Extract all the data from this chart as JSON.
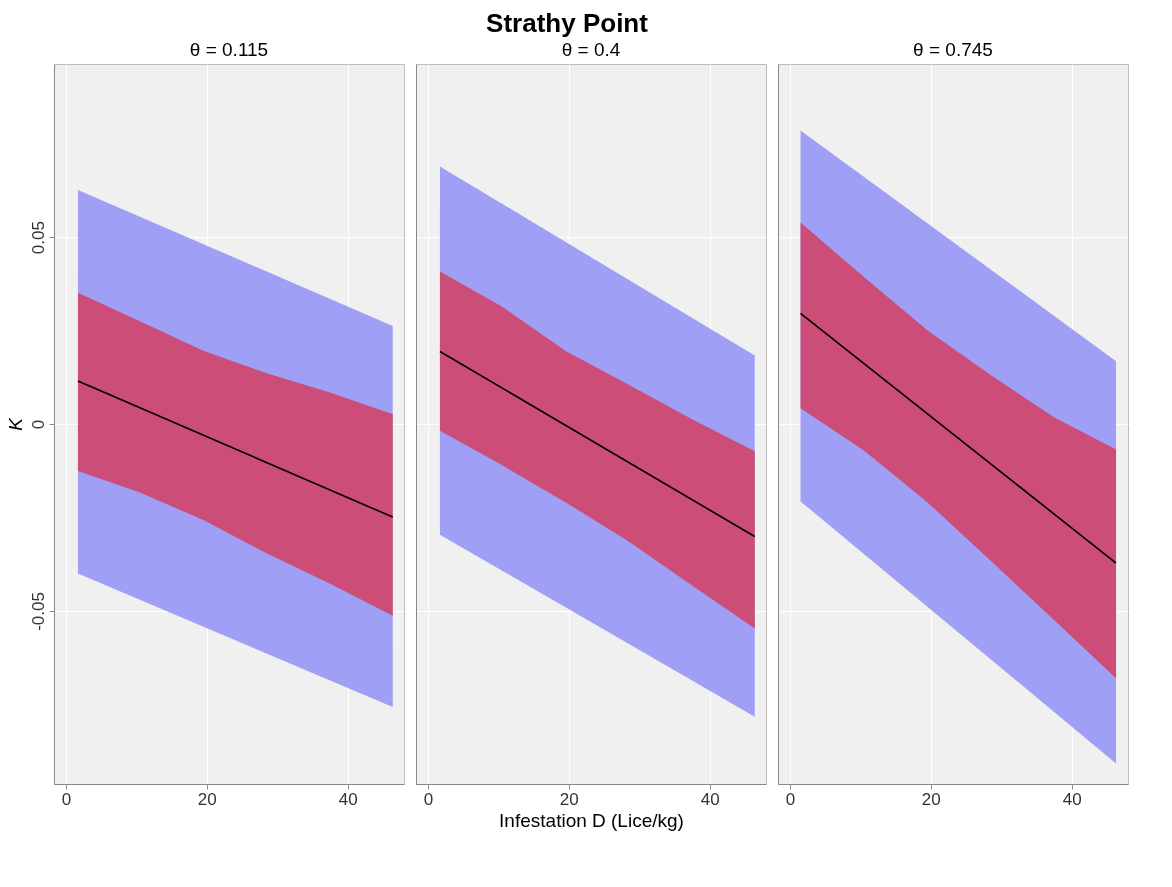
{
  "chart_data": [
    {
      "type": "line",
      "subtitle": "θ = 0.115",
      "ylabel": "K",
      "xlim": [
        -1.7,
        48
      ],
      "xticks": [
        0,
        20,
        40
      ],
      "ylim": [
        -0.0963,
        0.0963
      ],
      "yticks": [
        -0.05,
        0,
        0.05
      ],
      "grid": true,
      "legend": false,
      "series": [
        {
          "type": "area",
          "color": "#9f9ff5",
          "x": [
            1.7,
            46.4
          ],
          "values": [
            null,
            null
          ],
          "lower": [
            -0.04,
            -0.0757
          ],
          "upper": [
            0.0626,
            0.0262
          ]
        },
        {
          "type": "area",
          "color": "#cc4d77",
          "x": [
            1.7,
            10.5,
            19.5,
            28.5,
            37.5,
            46.4
          ],
          "values": [
            null,
            null,
            null,
            null,
            null,
            null
          ],
          "lower": [
            -0.0126,
            -0.0183,
            -0.0257,
            -0.0346,
            -0.0427,
            -0.0513
          ],
          "upper": [
            0.0351,
            0.0275,
            0.0196,
            0.0136,
            0.0084,
            0.0026
          ]
        },
        {
          "color": "#000000",
          "x": [
            1.7,
            46.4
          ],
          "values": [
            0.0115,
            -0.0249
          ]
        }
      ]
    },
    {
      "type": "line",
      "title": "Strathy Point",
      "subtitle": "θ = 0.4",
      "xlabel": "Infestation D (Lice/kg)",
      "xlim": [
        -1.7,
        48
      ],
      "xticks": [
        0,
        20,
        40
      ],
      "ylim": [
        -0.0963,
        0.0963
      ],
      "yticks": [
        -0.05,
        0,
        0.05
      ],
      "grid": true,
      "legend": false,
      "tick_labels": "x",
      "series": [
        {
          "type": "area",
          "color": "#9f9ff5",
          "x": [
            1.7,
            46.4
          ],
          "values": [
            null,
            null
          ],
          "lower": [
            -0.0296,
            -0.0783
          ],
          "upper": [
            0.0689,
            0.0183
          ]
        },
        {
          "type": "area",
          "color": "#cc4d77",
          "x": [
            1.7,
            10.5,
            19.5,
            28.5,
            37.5,
            46.4
          ],
          "values": [
            null,
            null,
            null,
            null,
            null,
            null
          ],
          "lower": [
            -0.0018,
            -0.011,
            -0.0209,
            -0.0314,
            -0.0432,
            -0.0547
          ],
          "upper": [
            0.0408,
            0.0314,
            0.0196,
            0.0105,
            0.0013,
            -0.0073
          ]
        },
        {
          "color": "#000000",
          "x": [
            1.7,
            46.4
          ],
          "values": [
            0.0194,
            -0.0301
          ]
        }
      ]
    },
    {
      "type": "line",
      "subtitle": "θ = 0.745",
      "xlim": [
        -1.7,
        48
      ],
      "xticks": [
        0,
        20,
        40
      ],
      "ylim": [
        -0.0963,
        0.0963
      ],
      "yticks": [
        -0.05,
        0,
        0.05
      ],
      "grid": true,
      "legend": false,
      "tick_labels": "x",
      "series": [
        {
          "type": "area",
          "color": "#9f9ff5",
          "x": [
            1.5,
            46.3
          ],
          "values": [
            null,
            null
          ],
          "lower": [
            -0.0207,
            -0.0908
          ],
          "upper": [
            0.0785,
            0.0168
          ]
        },
        {
          "type": "area",
          "color": "#cc4d77",
          "x": [
            1.5,
            10.5,
            19.5,
            28.5,
            37.5,
            46.3
          ],
          "values": [
            null,
            null,
            null,
            null,
            null,
            null
          ],
          "lower": [
            0.0042,
            -0.0071,
            -0.0209,
            -0.0366,
            -0.0524,
            -0.068
          ],
          "upper": [
            0.0539,
            0.0393,
            0.0251,
            0.0131,
            0.0018,
            -0.0068
          ]
        },
        {
          "color": "#000000",
          "x": [
            1.5,
            46.3
          ],
          "values": [
            0.0296,
            -0.0372
          ]
        }
      ]
    }
  ]
}
